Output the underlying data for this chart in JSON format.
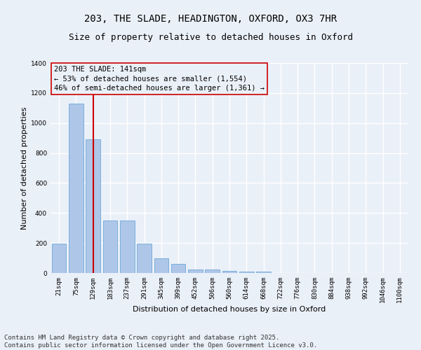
{
  "title_line1": "203, THE SLADE, HEADINGTON, OXFORD, OX3 7HR",
  "title_line2": "Size of property relative to detached houses in Oxford",
  "xlabel": "Distribution of detached houses by size in Oxford",
  "ylabel": "Number of detached properties",
  "categories": [
    "21sqm",
    "75sqm",
    "129sqm",
    "183sqm",
    "237sqm",
    "291sqm",
    "345sqm",
    "399sqm",
    "452sqm",
    "506sqm",
    "560sqm",
    "614sqm",
    "668sqm",
    "722sqm",
    "776sqm",
    "830sqm",
    "884sqm",
    "938sqm",
    "992sqm",
    "1046sqm",
    "1100sqm"
  ],
  "values": [
    195,
    1130,
    890,
    350,
    350,
    195,
    100,
    60,
    25,
    22,
    15,
    8,
    8,
    0,
    0,
    0,
    0,
    0,
    0,
    0,
    0
  ],
  "bar_color": "#aec6e8",
  "bar_edge_color": "#5a9fd4",
  "vline_x": 2,
  "vline_color": "#cc0000",
  "annotation_text": "203 THE SLADE: 141sqm\n← 53% of detached houses are smaller (1,554)\n46% of semi-detached houses are larger (1,361) →",
  "annotation_box_color": "#cc0000",
  "ylim": [
    0,
    1400
  ],
  "yticks": [
    0,
    200,
    400,
    600,
    800,
    1000,
    1200,
    1400
  ],
  "background_color": "#eaf0f8",
  "grid_color": "#ffffff",
  "footer_line1": "Contains HM Land Registry data © Crown copyright and database right 2025.",
  "footer_line2": "Contains public sector information licensed under the Open Government Licence v3.0.",
  "title_fontsize": 10,
  "subtitle_fontsize": 9,
  "axis_label_fontsize": 8,
  "tick_fontsize": 6.5,
  "annotation_fontsize": 7.5,
  "footer_fontsize": 6.5
}
